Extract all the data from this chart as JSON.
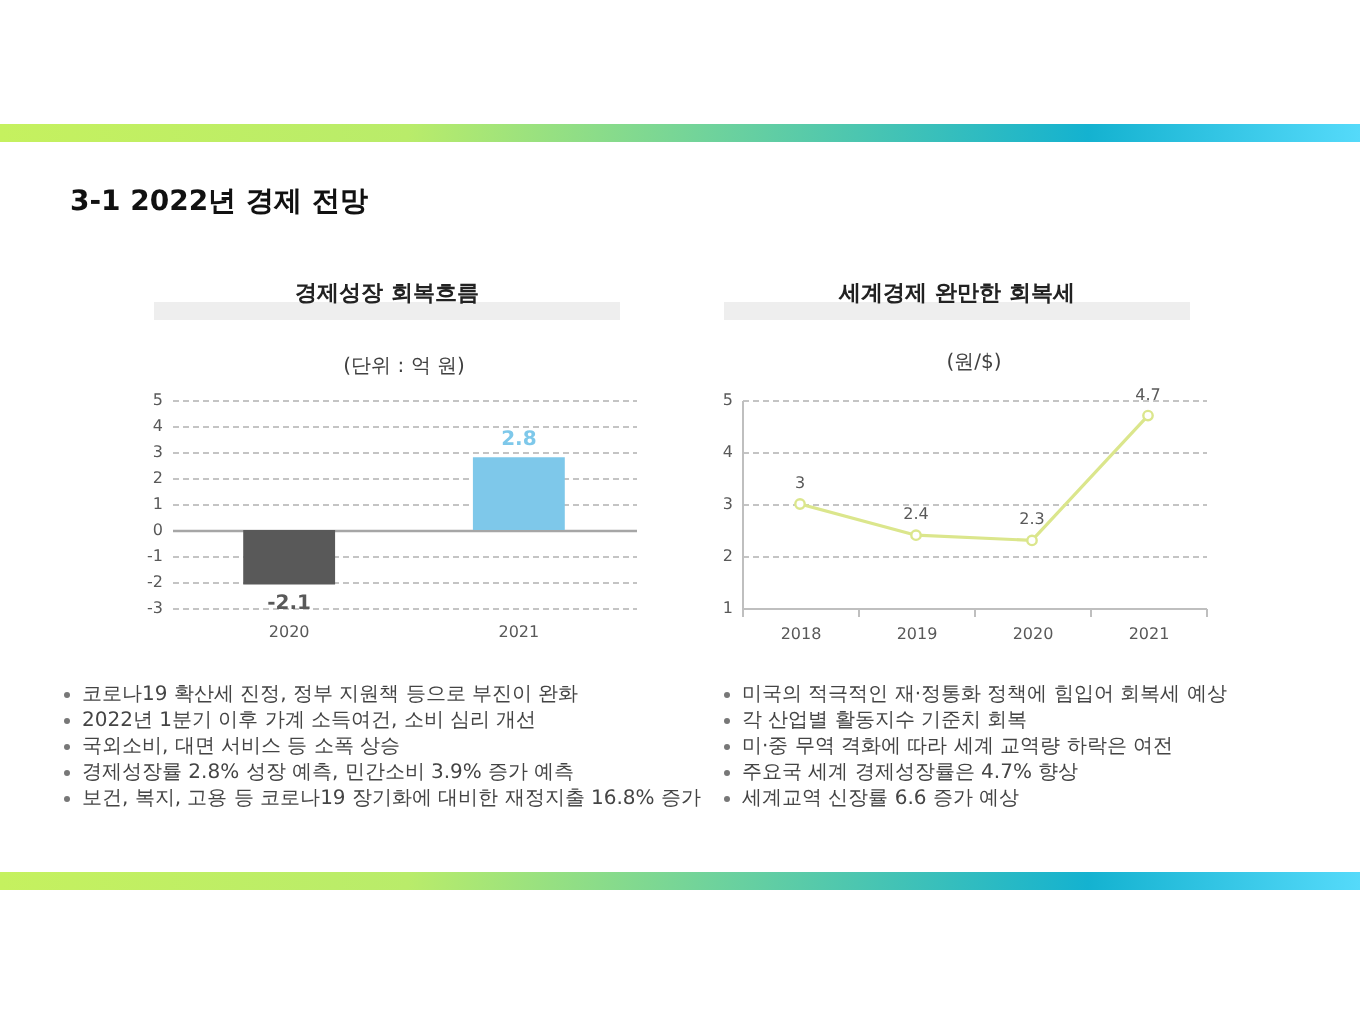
{
  "chart_data": [
    {
      "type": "bar",
      "title": "경제성장 회복흐름",
      "subtitle": "(단위 : 억 원)",
      "categories": [
        "2020",
        "2021"
      ],
      "values": [
        -2.1,
        2.8
      ],
      "colors": [
        "#595959",
        "#7ec8ea"
      ],
      "ylim": [
        -3,
        5
      ],
      "yticks": [
        -3,
        -2,
        -1,
        0,
        1,
        2,
        3,
        4,
        5
      ],
      "grid": "y",
      "data_labels": true,
      "annotations": [
        "3-1 2022년 경제 전망",
        "코로나19 확산세 진정, 정부 지원책 등으로 부진이 완화",
        "2022년 1분기 이후 가계 소득여건, 소비 심리 개선",
        "국외소비, 대면 서비스 등 소폭 상승",
        "경제성장률 2.8% 성장 예측, 민간소비 3.9% 증가 예측",
        "보건, 복지, 고용 등 코로나19 장기화에 대비한 재정지출 16.8% 증가"
      ]
    },
    {
      "type": "line",
      "title": "세계경제 완만한 회복세",
      "subtitle": "(원/$)",
      "categories": [
        "2018",
        "2019",
        "2020",
        "2021"
      ],
      "values": [
        3,
        2.4,
        2.3,
        4.7
      ],
      "color": "#dbe68c",
      "marker": "circle",
      "ylim": [
        1,
        5
      ],
      "yticks": [
        1,
        2,
        3,
        4,
        5
      ],
      "grid": "y",
      "data_labels": true,
      "annotations": [
        "미국의 적극적인 재·정통화 정책에 힘입어 회복세 예상",
        "각 산업별 활동지수 기준치 회복",
        "미·중 무역 격화에 따라 세계 교역량 하락은 여전",
        "주요국 세계 경제성장률은 4.7% 향상",
        "세계교역 신장률 6.6 증가 예상"
      ]
    }
  ]
}
